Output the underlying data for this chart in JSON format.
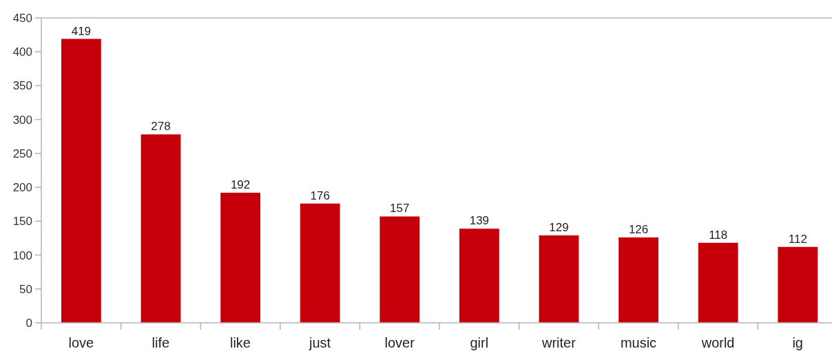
{
  "chart_data": {
    "type": "bar",
    "categories": [
      "love",
      "life",
      "like",
      "just",
      "lover",
      "girl",
      "writer",
      "music",
      "world",
      "ig"
    ],
    "values": [
      419,
      278,
      192,
      176,
      157,
      139,
      129,
      126,
      118,
      112
    ],
    "color": "#c5000b",
    "ylim": [
      0,
      450
    ],
    "yticks": [
      0,
      50,
      100,
      150,
      200,
      250,
      300,
      350,
      400,
      450
    ],
    "data_labels": true
  }
}
